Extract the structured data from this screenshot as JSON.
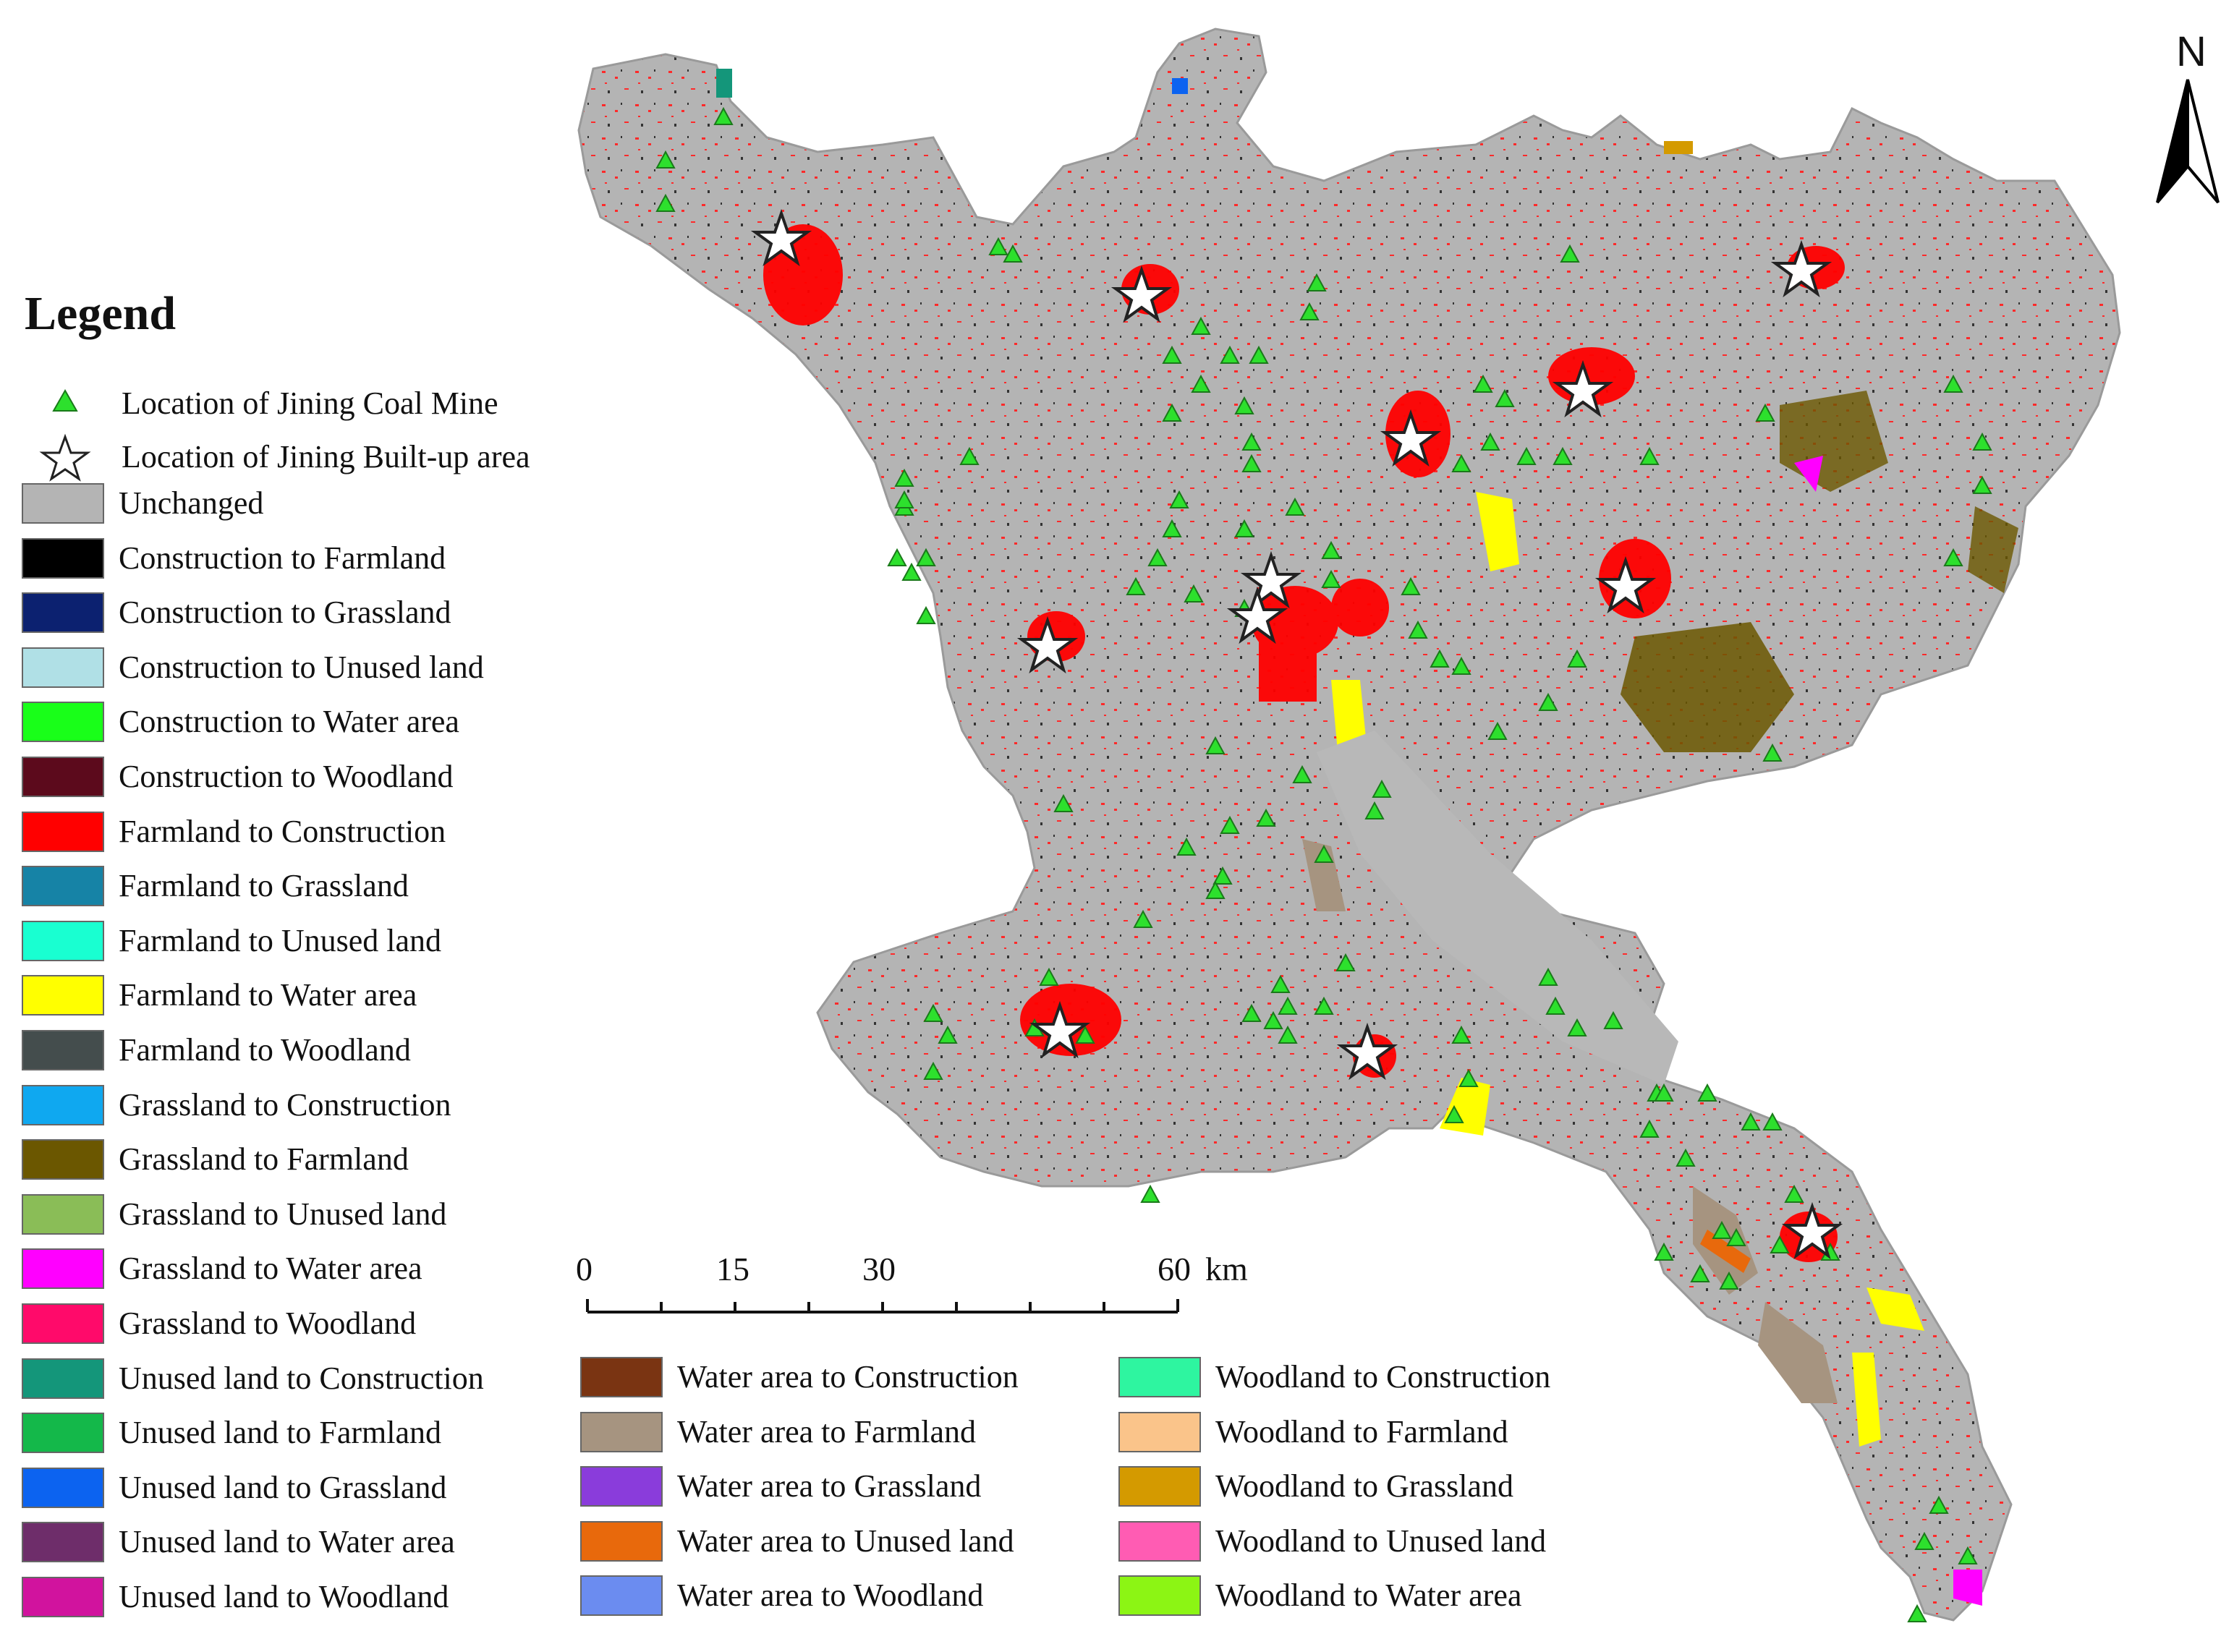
{
  "legend": {
    "title": "Legend",
    "symbols": [
      {
        "label": "Location of Jining Coal Mine",
        "icon": "triangle-icon",
        "color": "#2de02d"
      },
      {
        "label": "Location of Jining Built-up area",
        "icon": "star-icon",
        "color": "#ffffff"
      }
    ],
    "col1": [
      {
        "label": "Unchanged",
        "color": "#b4b4b4"
      },
      {
        "label": "Construction to Farmland",
        "color": "#000000"
      },
      {
        "label": "Construction to Grassland",
        "color": "#0c2170"
      },
      {
        "label": "Construction to Unused land",
        "color": "#b0e0e6"
      },
      {
        "label": "Construction to Water area",
        "color": "#19ff19"
      },
      {
        "label": "Construction to Woodland",
        "color": "#5c0a1c"
      },
      {
        "label": "Farmland to Construction",
        "color": "#ff0000"
      },
      {
        "label": "Farmland to Grassland",
        "color": "#1683a6"
      },
      {
        "label": "Farmland to Unused land",
        "color": "#19ffd1"
      },
      {
        "label": "Farmland to Water area",
        "color": "#ffff00"
      },
      {
        "label": "Farmland to Woodland",
        "color": "#444d4d"
      },
      {
        "label": "Grassland to Construction",
        "color": "#0fa8f0"
      },
      {
        "label": "Grassland to Farmland",
        "color": "#6b5700"
      },
      {
        "label": "Grassland to Unused land",
        "color": "#8abd57"
      },
      {
        "label": "Grassland to Water area",
        "color": "#ff00ff"
      },
      {
        "label": "Grassland to Woodland",
        "color": "#ff0a6a"
      },
      {
        "label": "Unused land to Construction",
        "color": "#14967a"
      },
      {
        "label": "Unused land to Farmland",
        "color": "#14b84a"
      },
      {
        "label": "Unused land to Grassland",
        "color": "#0c63f0"
      },
      {
        "label": "Unused land to Water area",
        "color": "#6e2d6a"
      },
      {
        "label": "Unused land to Woodland",
        "color": "#d1139e"
      }
    ],
    "col2": [
      {
        "label": "Water area to Construction",
        "color": "#7a3412"
      },
      {
        "label": "Water area to Farmland",
        "color": "#a69480"
      },
      {
        "label": "Water area to Grassland",
        "color": "#8a3cdb"
      },
      {
        "label": "Water area to Unused land",
        "color": "#e8690c"
      },
      {
        "label": "Water area to Woodland",
        "color": "#6b8cf0"
      }
    ],
    "col3": [
      {
        "label": "Woodland to Construction",
        "color": "#2ef5a0"
      },
      {
        "label": "Woodland to Farmland",
        "color": "#fac48a"
      },
      {
        "label": "Woodland to Grassland",
        "color": "#d49a00"
      },
      {
        "label": "Woodland to Unused land",
        "color": "#ff5cb3"
      },
      {
        "label": "Woodland to Water area",
        "color": "#8cf514"
      }
    ]
  },
  "scale_bar": {
    "ticks": [
      "0",
      "15",
      "30",
      "60"
    ],
    "unit": "km"
  },
  "north_arrow": {
    "label": "N",
    "icon": "north-arrow-icon"
  },
  "map": {
    "base_color": "#b4b4b4",
    "mine_color": "#2de02d",
    "built_up_color": "#ff0000"
  }
}
